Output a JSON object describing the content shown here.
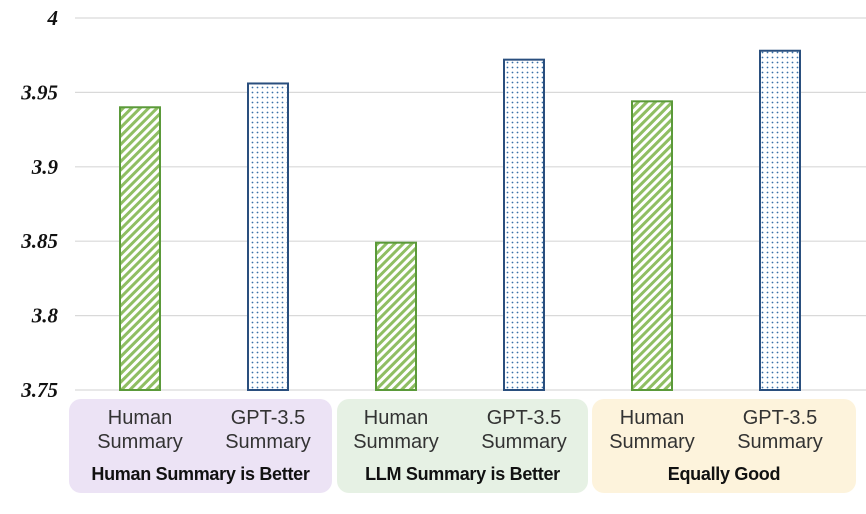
{
  "chart_data": {
    "type": "bar",
    "ylim": [
      3.75,
      4
    ],
    "yticks": [
      "3.75",
      "3.8",
      "3.85",
      "3.9",
      "3.95",
      "4"
    ],
    "grid": true,
    "categories": [
      {
        "line1": "Human",
        "line2": "Summary"
      },
      {
        "line1": "GPT-3.5",
        "line2": "Summary"
      },
      {
        "line1": "Human",
        "line2": "Summary"
      },
      {
        "line1": "GPT-3.5",
        "line2": "Summary"
      },
      {
        "line1": "Human",
        "line2": "Summary"
      },
      {
        "line1": "GPT-3.5",
        "line2": "Summary"
      }
    ],
    "values": [
      3.94,
      3.956,
      3.849,
      3.972,
      3.944,
      3.978
    ],
    "bar_styles": [
      "hatch-green",
      "dots-blue",
      "hatch-green",
      "dots-blue",
      "hatch-green",
      "dots-blue"
    ],
    "groups": [
      {
        "label": "Human Summary is Better",
        "color": "#ece3f5"
      },
      {
        "label": "LLM Summary is Better",
        "color": "#e6f1e4"
      },
      {
        "label": "Equally Good",
        "color": "#fdf3dc"
      }
    ],
    "colors": {
      "green_stroke": "#5b9a3a",
      "green_hatch": "#8fbe63",
      "blue_stroke": "#2a4f7e",
      "blue_dots": "#3a72a8",
      "grid": "#d9d9d9"
    }
  }
}
